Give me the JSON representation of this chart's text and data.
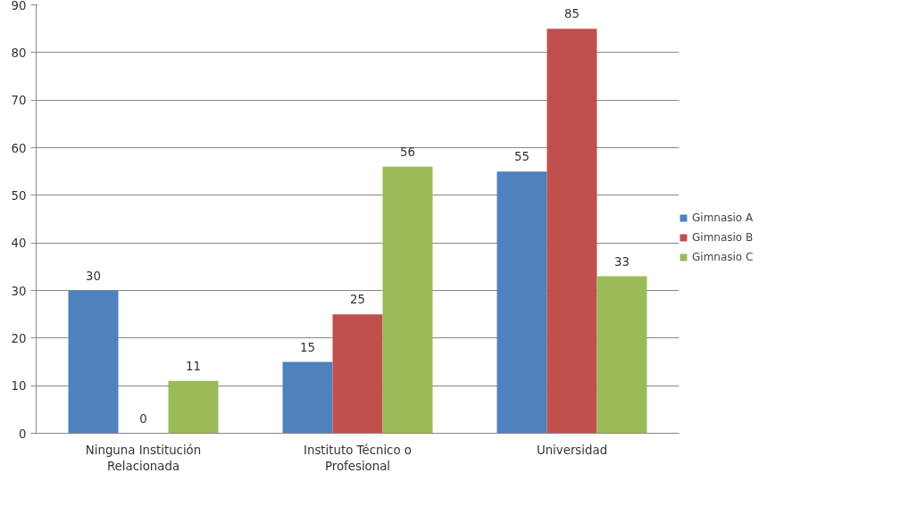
{
  "chart_data": {
    "type": "bar",
    "categories": [
      "Ninguna Institución Relacionada",
      "Instituto Técnico o Profesional",
      "Universidad"
    ],
    "series": [
      {
        "name": "Gimnasio A",
        "color": "#4f81bd",
        "values": [
          30,
          15,
          55
        ]
      },
      {
        "name": "Gimnasio B",
        "color": "#c0504d",
        "values": [
          0,
          25,
          85
        ]
      },
      {
        "name": "Gimnasio C",
        "color": "#9bbb59",
        "values": [
          11,
          56,
          33
        ]
      }
    ],
    "ylim": [
      0,
      90
    ],
    "yticks": [
      0,
      10,
      20,
      30,
      40,
      50,
      60,
      70,
      80,
      90
    ],
    "grid": "y",
    "legend": "right",
    "data_labels": true
  }
}
